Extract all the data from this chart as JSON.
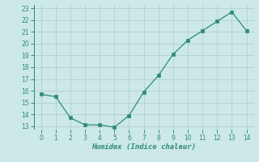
{
  "x": [
    0,
    1,
    2,
    3,
    4,
    5,
    6,
    7,
    8,
    9,
    10,
    11,
    12,
    13,
    14
  ],
  "y": [
    15.7,
    15.5,
    13.7,
    13.1,
    13.1,
    12.9,
    13.9,
    15.9,
    17.3,
    19.1,
    20.3,
    21.1,
    21.9,
    22.7,
    21.1
  ],
  "xlabel": "Humidex (Indice chaleur)",
  "ylim_min": 12.7,
  "ylim_max": 23.3,
  "xlim_min": -0.5,
  "xlim_max": 14.5,
  "yticks": [
    13,
    14,
    15,
    16,
    17,
    18,
    19,
    20,
    21,
    22,
    23
  ],
  "xticks": [
    0,
    1,
    2,
    3,
    4,
    5,
    6,
    7,
    8,
    9,
    10,
    11,
    12,
    13,
    14
  ],
  "line_color": "#2e8b7a",
  "marker_color": "#2e8b7a",
  "bg_color": "#cce8e8",
  "grid_color": "#aacccc",
  "axes_bg": "#cce8e8",
  "tick_fontsize": 5.5,
  "xlabel_fontsize": 6.5
}
